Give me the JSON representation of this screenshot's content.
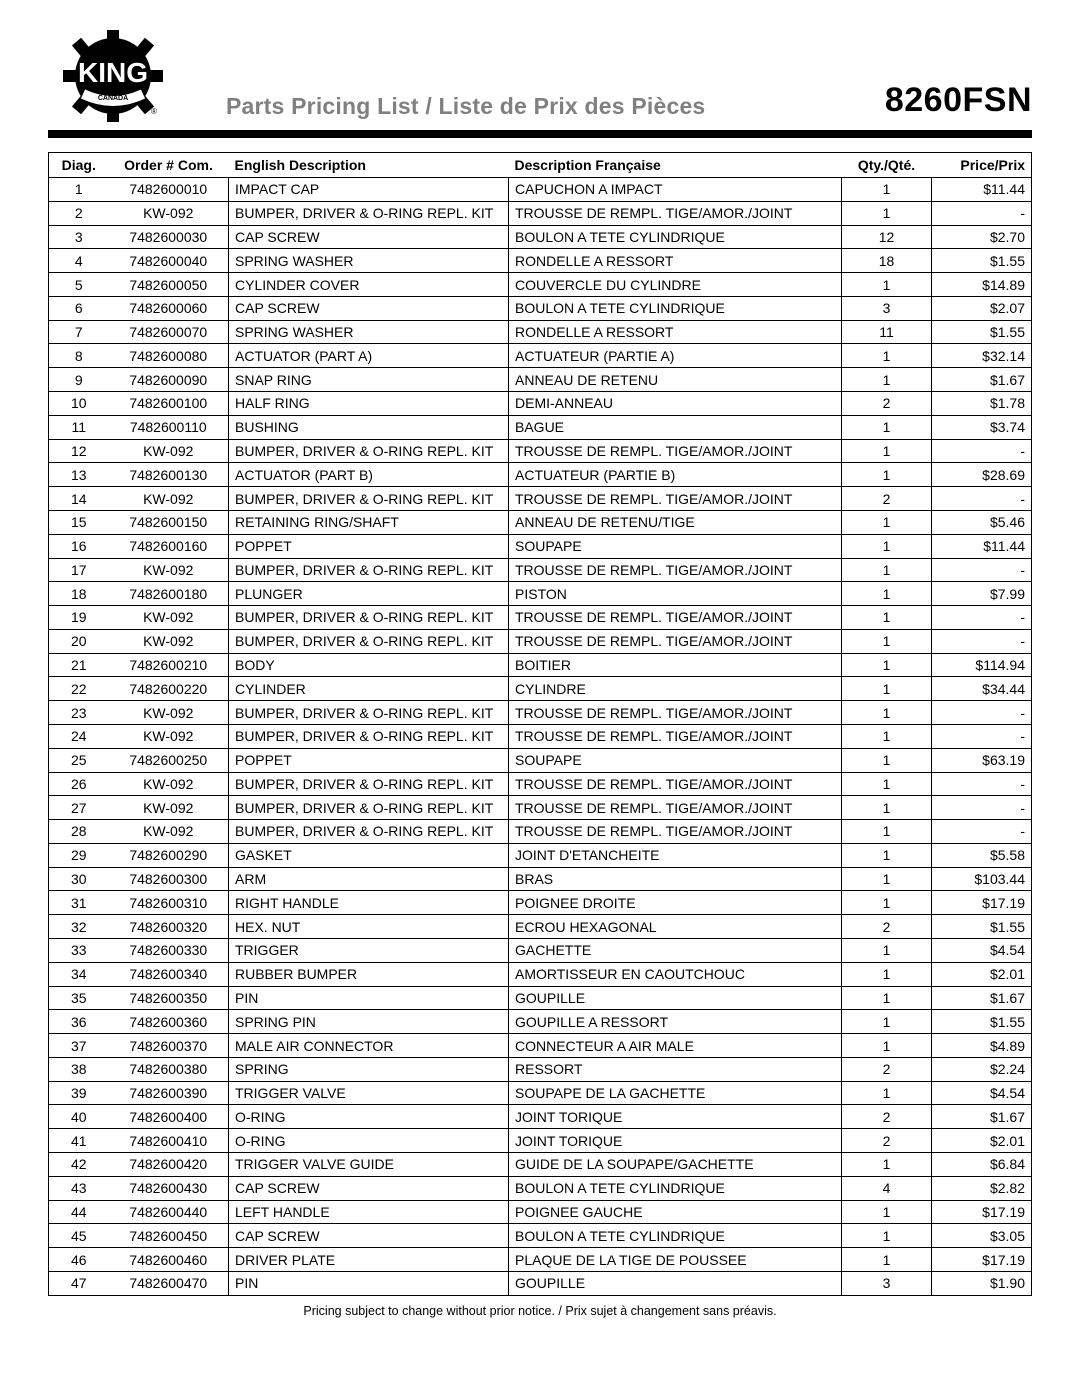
{
  "brand": {
    "name": "KING",
    "sub": "CANADA"
  },
  "page_title": "Parts Pricing List / Liste de Prix des Pièces",
  "model": "8260FSN",
  "columns": {
    "diag": "Diag.",
    "order": "Order # Com.",
    "en": "English Description",
    "fr": "Description Française",
    "qty": "Qty./Qté.",
    "price": "Price/Prix"
  },
  "rows": [
    {
      "diag": "1",
      "order": "7482600010",
      "en": "IMPACT CAP",
      "fr": "CAPUCHON A IMPACT",
      "qty": "1",
      "price": "$11.44"
    },
    {
      "diag": "2",
      "order": "KW-092",
      "en": "BUMPER, DRIVER & O-RING REPL. KIT",
      "fr": "TROUSSE DE REMPL. TIGE/AMOR./JOINT",
      "qty": "1",
      "price": "-"
    },
    {
      "diag": "3",
      "order": "7482600030",
      "en": "CAP SCREW",
      "fr": "BOULON A TETE CYLINDRIQUE",
      "qty": "12",
      "price": "$2.70"
    },
    {
      "diag": "4",
      "order": "7482600040",
      "en": "SPRING WASHER",
      "fr": "RONDELLE A RESSORT",
      "qty": "18",
      "price": "$1.55"
    },
    {
      "diag": "5",
      "order": "7482600050",
      "en": "CYLINDER COVER",
      "fr": "COUVERCLE DU CYLINDRE",
      "qty": "1",
      "price": "$14.89"
    },
    {
      "diag": "6",
      "order": "7482600060",
      "en": "CAP SCREW",
      "fr": "BOULON A TETE CYLINDRIQUE",
      "qty": "3",
      "price": "$2.07"
    },
    {
      "diag": "7",
      "order": "7482600070",
      "en": "SPRING WASHER",
      "fr": "RONDELLE A RESSORT",
      "qty": "11",
      "price": "$1.55"
    },
    {
      "diag": "8",
      "order": "7482600080",
      "en": "ACTUATOR (PART A)",
      "fr": "ACTUATEUR (PARTIE A)",
      "qty": "1",
      "price": "$32.14"
    },
    {
      "diag": "9",
      "order": "7482600090",
      "en": "SNAP RING",
      "fr": "ANNEAU DE RETENU",
      "qty": "1",
      "price": "$1.67"
    },
    {
      "diag": "10",
      "order": "7482600100",
      "en": "HALF RING",
      "fr": "DEMI-ANNEAU",
      "qty": "2",
      "price": "$1.78"
    },
    {
      "diag": "11",
      "order": "7482600110",
      "en": "BUSHING",
      "fr": "BAGUE",
      "qty": "1",
      "price": "$3.74"
    },
    {
      "diag": "12",
      "order": "KW-092",
      "en": "BUMPER, DRIVER & O-RING REPL. KIT",
      "fr": "TROUSSE DE REMPL. TIGE/AMOR./JOINT",
      "qty": "1",
      "price": "-"
    },
    {
      "diag": "13",
      "order": "7482600130",
      "en": "ACTUATOR (PART B)",
      "fr": "ACTUATEUR (PARTIE B)",
      "qty": "1",
      "price": "$28.69"
    },
    {
      "diag": "14",
      "order": "KW-092",
      "en": "BUMPER, DRIVER & O-RING REPL. KIT",
      "fr": "TROUSSE DE REMPL. TIGE/AMOR./JOINT",
      "qty": "2",
      "price": "-"
    },
    {
      "diag": "15",
      "order": "7482600150",
      "en": "RETAINING RING/SHAFT",
      "fr": "ANNEAU DE RETENU/TIGE",
      "qty": "1",
      "price": "$5.46"
    },
    {
      "diag": "16",
      "order": "7482600160",
      "en": "POPPET",
      "fr": "SOUPAPE",
      "qty": "1",
      "price": "$11.44"
    },
    {
      "diag": "17",
      "order": "KW-092",
      "en": "BUMPER, DRIVER & O-RING REPL. KIT",
      "fr": "TROUSSE DE REMPL. TIGE/AMOR./JOINT",
      "qty": "1",
      "price": "-"
    },
    {
      "diag": "18",
      "order": "7482600180",
      "en": "PLUNGER",
      "fr": "PISTON",
      "qty": "1",
      "price": "$7.99"
    },
    {
      "diag": "19",
      "order": "KW-092",
      "en": "BUMPER, DRIVER & O-RING REPL. KIT",
      "fr": "TROUSSE DE REMPL. TIGE/AMOR./JOINT",
      "qty": "1",
      "price": "-"
    },
    {
      "diag": "20",
      "order": "KW-092",
      "en": "BUMPER, DRIVER & O-RING REPL. KIT",
      "fr": "TROUSSE DE REMPL. TIGE/AMOR./JOINT",
      "qty": "1",
      "price": "-"
    },
    {
      "diag": "21",
      "order": "7482600210",
      "en": "BODY",
      "fr": "BOITIER",
      "qty": "1",
      "price": "$114.94"
    },
    {
      "diag": "22",
      "order": "7482600220",
      "en": "CYLINDER",
      "fr": "CYLINDRE",
      "qty": "1",
      "price": "$34.44"
    },
    {
      "diag": "23",
      "order": "KW-092",
      "en": "BUMPER, DRIVER & O-RING REPL. KIT",
      "fr": "TROUSSE DE REMPL. TIGE/AMOR./JOINT",
      "qty": "1",
      "price": "-"
    },
    {
      "diag": "24",
      "order": "KW-092",
      "en": "BUMPER, DRIVER & O-RING REPL. KIT",
      "fr": "TROUSSE DE REMPL. TIGE/AMOR./JOINT",
      "qty": "1",
      "price": "-"
    },
    {
      "diag": "25",
      "order": "7482600250",
      "en": "POPPET",
      "fr": "SOUPAPE",
      "qty": "1",
      "price": "$63.19"
    },
    {
      "diag": "26",
      "order": "KW-092",
      "en": "BUMPER, DRIVER & O-RING REPL. KIT",
      "fr": "TROUSSE DE REMPL. TIGE/AMOR./JOINT",
      "qty": "1",
      "price": "-"
    },
    {
      "diag": "27",
      "order": "KW-092",
      "en": "BUMPER, DRIVER & O-RING REPL. KIT",
      "fr": "TROUSSE DE REMPL. TIGE/AMOR./JOINT",
      "qty": "1",
      "price": "-"
    },
    {
      "diag": "28",
      "order": "KW-092",
      "en": "BUMPER, DRIVER & O-RING REPL. KIT",
      "fr": "TROUSSE DE REMPL. TIGE/AMOR./JOINT",
      "qty": "1",
      "price": "-"
    },
    {
      "diag": "29",
      "order": "7482600290",
      "en": "GASKET",
      "fr": "JOINT D'ETANCHEITE",
      "qty": "1",
      "price": "$5.58"
    },
    {
      "diag": "30",
      "order": "7482600300",
      "en": "ARM",
      "fr": "BRAS",
      "qty": "1",
      "price": "$103.44"
    },
    {
      "diag": "31",
      "order": "7482600310",
      "en": "RIGHT HANDLE",
      "fr": "POIGNEE DROITE",
      "qty": "1",
      "price": "$17.19"
    },
    {
      "diag": "32",
      "order": "7482600320",
      "en": "HEX. NUT",
      "fr": "ECROU HEXAGONAL",
      "qty": "2",
      "price": "$1.55"
    },
    {
      "diag": "33",
      "order": "7482600330",
      "en": "TRIGGER",
      "fr": "GACHETTE",
      "qty": "1",
      "price": "$4.54"
    },
    {
      "diag": "34",
      "order": "7482600340",
      "en": "RUBBER BUMPER",
      "fr": "AMORTISSEUR EN CAOUTCHOUC",
      "qty": "1",
      "price": "$2.01"
    },
    {
      "diag": "35",
      "order": "7482600350",
      "en": "PIN",
      "fr": "GOUPILLE",
      "qty": "1",
      "price": "$1.67"
    },
    {
      "diag": "36",
      "order": "7482600360",
      "en": "SPRING PIN",
      "fr": "GOUPILLE A RESSORT",
      "qty": "1",
      "price": "$1.55"
    },
    {
      "diag": "37",
      "order": "7482600370",
      "en": "MALE AIR CONNECTOR",
      "fr": "CONNECTEUR A AIR MALE",
      "qty": "1",
      "price": "$4.89"
    },
    {
      "diag": "38",
      "order": "7482600380",
      "en": "SPRING",
      "fr": "RESSORT",
      "qty": "2",
      "price": "$2.24"
    },
    {
      "diag": "39",
      "order": "7482600390",
      "en": "TRIGGER VALVE",
      "fr": "SOUPAPE DE LA GACHETTE",
      "qty": "1",
      "price": "$4.54"
    },
    {
      "diag": "40",
      "order": "7482600400",
      "en": "O-RING",
      "fr": "JOINT TORIQUE",
      "qty": "2",
      "price": "$1.67"
    },
    {
      "diag": "41",
      "order": "7482600410",
      "en": "O-RING",
      "fr": "JOINT TORIQUE",
      "qty": "2",
      "price": "$2.01"
    },
    {
      "diag": "42",
      "order": "7482600420",
      "en": "TRIGGER VALVE GUIDE",
      "fr": "GUIDE DE LA SOUPAPE/GACHETTE",
      "qty": "1",
      "price": "$6.84"
    },
    {
      "diag": "43",
      "order": "7482600430",
      "en": "CAP SCREW",
      "fr": "BOULON A TETE CYLINDRIQUE",
      "qty": "4",
      "price": "$2.82"
    },
    {
      "diag": "44",
      "order": "7482600440",
      "en": "LEFT HANDLE",
      "fr": "POIGNEE GAUCHE",
      "qty": "1",
      "price": "$17.19"
    },
    {
      "diag": "45",
      "order": "7482600450",
      "en": "CAP SCREW",
      "fr": "BOULON A TETE CYLINDRIQUE",
      "qty": "1",
      "price": "$3.05"
    },
    {
      "diag": "46",
      "order": "7482600460",
      "en": "DRIVER PLATE",
      "fr": "PLAQUE DE LA TIGE DE POUSSEE",
      "qty": "1",
      "price": "$17.19"
    },
    {
      "diag": "47",
      "order": "7482600470",
      "en": "PIN",
      "fr": "GOUPILLE",
      "qty": "3",
      "price": "$1.90"
    }
  ],
  "footnote": "Pricing subject to change without prior notice. / Prix sujet à changement sans préavis."
}
